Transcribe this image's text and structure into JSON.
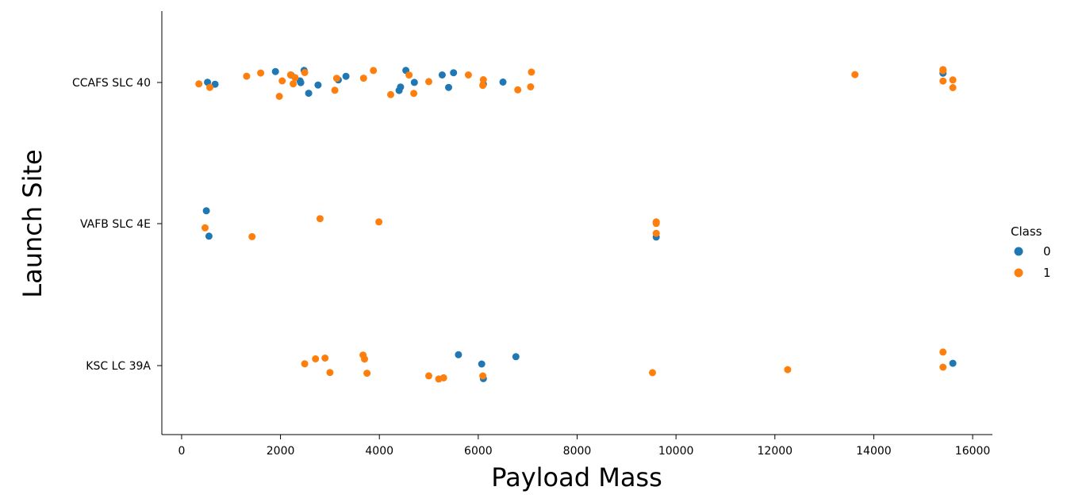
{
  "chart_data": {
    "type": "scatter",
    "xlabel": "Payload Mass",
    "ylabel": "Launch Site",
    "xlim": [
      -400,
      16400
    ],
    "xticks": [
      0,
      2000,
      4000,
      6000,
      8000,
      10000,
      12000,
      14000,
      16000
    ],
    "categories": [
      "CCAFS SLC 40",
      "VAFB SLC 4E",
      "KSC LC 39A"
    ],
    "grid": false,
    "legend": {
      "title": "Class",
      "position": "right",
      "labels": [
        "0",
        "1"
      ]
    },
    "colors": {
      "0": "#1f77b4",
      "1": "#ff7f0e"
    },
    "series": [
      {
        "name": "0",
        "points": [
          [
            "CCAFS SLC 40",
            525
          ],
          [
            "CCAFS SLC 40",
            677
          ],
          [
            "CCAFS SLC 40",
            1898
          ],
          [
            "CCAFS SLC 40",
            2216
          ],
          [
            "CCAFS SLC 40",
            2395
          ],
          [
            "CCAFS SLC 40",
            2410
          ],
          [
            "CCAFS SLC 40",
            2477
          ],
          [
            "CCAFS SLC 40",
            2570
          ],
          [
            "CCAFS SLC 40",
            2760
          ],
          [
            "CCAFS SLC 40",
            3170
          ],
          [
            "CCAFS SLC 40",
            3325
          ],
          [
            "CCAFS SLC 40",
            4400
          ],
          [
            "CCAFS SLC 40",
            4428
          ],
          [
            "CCAFS SLC 40",
            4535
          ],
          [
            "CCAFS SLC 40",
            4707
          ],
          [
            "CCAFS SLC 40",
            5271
          ],
          [
            "CCAFS SLC 40",
            5400
          ],
          [
            "CCAFS SLC 40",
            5500
          ],
          [
            "CCAFS SLC 40",
            6104
          ],
          [
            "CCAFS SLC 40",
            6500
          ],
          [
            "CCAFS SLC 40",
            15400
          ],
          [
            "VAFB SLC 4E",
            500
          ],
          [
            "VAFB SLC 4E",
            553
          ],
          [
            "VAFB SLC 4E",
            9600
          ],
          [
            "KSC LC 39A",
            5600
          ],
          [
            "KSC LC 39A",
            6070
          ],
          [
            "KSC LC 39A",
            6104
          ],
          [
            "KSC LC 39A",
            6761
          ],
          [
            "KSC LC 39A",
            15600
          ]
        ]
      },
      {
        "name": "1",
        "points": [
          [
            "CCAFS SLC 40",
            350
          ],
          [
            "CCAFS SLC 40",
            570
          ],
          [
            "CCAFS SLC 40",
            1316
          ],
          [
            "CCAFS SLC 40",
            1600
          ],
          [
            "CCAFS SLC 40",
            1977
          ],
          [
            "CCAFS SLC 40",
            2034
          ],
          [
            "CCAFS SLC 40",
            2205
          ],
          [
            "CCAFS SLC 40",
            2257
          ],
          [
            "CCAFS SLC 40",
            2296
          ],
          [
            "CCAFS SLC 40",
            2490
          ],
          [
            "CCAFS SLC 40",
            3100
          ],
          [
            "CCAFS SLC 40",
            3136
          ],
          [
            "CCAFS SLC 40",
            3681
          ],
          [
            "CCAFS SLC 40",
            3880
          ],
          [
            "CCAFS SLC 40",
            4230
          ],
          [
            "CCAFS SLC 40",
            4600
          ],
          [
            "CCAFS SLC 40",
            4696
          ],
          [
            "CCAFS SLC 40",
            5000
          ],
          [
            "CCAFS SLC 40",
            5800
          ],
          [
            "CCAFS SLC 40",
            6092
          ],
          [
            "CCAFS SLC 40",
            6104
          ],
          [
            "CCAFS SLC 40",
            6800
          ],
          [
            "CCAFS SLC 40",
            7060
          ],
          [
            "CCAFS SLC 40",
            7076
          ],
          [
            "CCAFS SLC 40",
            13620
          ],
          [
            "CCAFS SLC 40",
            15400
          ],
          [
            "CCAFS SLC 40",
            15400
          ],
          [
            "CCAFS SLC 40",
            15400
          ],
          [
            "CCAFS SLC 40",
            15600
          ],
          [
            "CCAFS SLC 40",
            15600
          ],
          [
            "VAFB SLC 4E",
            475
          ],
          [
            "VAFB SLC 4E",
            1425
          ],
          [
            "VAFB SLC 4E",
            2800
          ],
          [
            "VAFB SLC 4E",
            3990
          ],
          [
            "VAFB SLC 4E",
            9600
          ],
          [
            "VAFB SLC 4E",
            9600
          ],
          [
            "VAFB SLC 4E",
            9600
          ],
          [
            "VAFB SLC 4E",
            9600
          ],
          [
            "KSC LC 39A",
            2490
          ],
          [
            "KSC LC 39A",
            2708
          ],
          [
            "KSC LC 39A",
            2900
          ],
          [
            "KSC LC 39A",
            3000
          ],
          [
            "KSC LC 39A",
            3669
          ],
          [
            "KSC LC 39A",
            3700
          ],
          [
            "KSC LC 39A",
            3750
          ],
          [
            "KSC LC 39A",
            5000
          ],
          [
            "KSC LC 39A",
            5200
          ],
          [
            "KSC LC 39A",
            5300
          ],
          [
            "KSC LC 39A",
            6092
          ],
          [
            "KSC LC 39A",
            9525
          ],
          [
            "KSC LC 39A",
            12259
          ],
          [
            "KSC LC 39A",
            15400
          ],
          [
            "KSC LC 39A",
            15400
          ]
        ]
      }
    ]
  }
}
